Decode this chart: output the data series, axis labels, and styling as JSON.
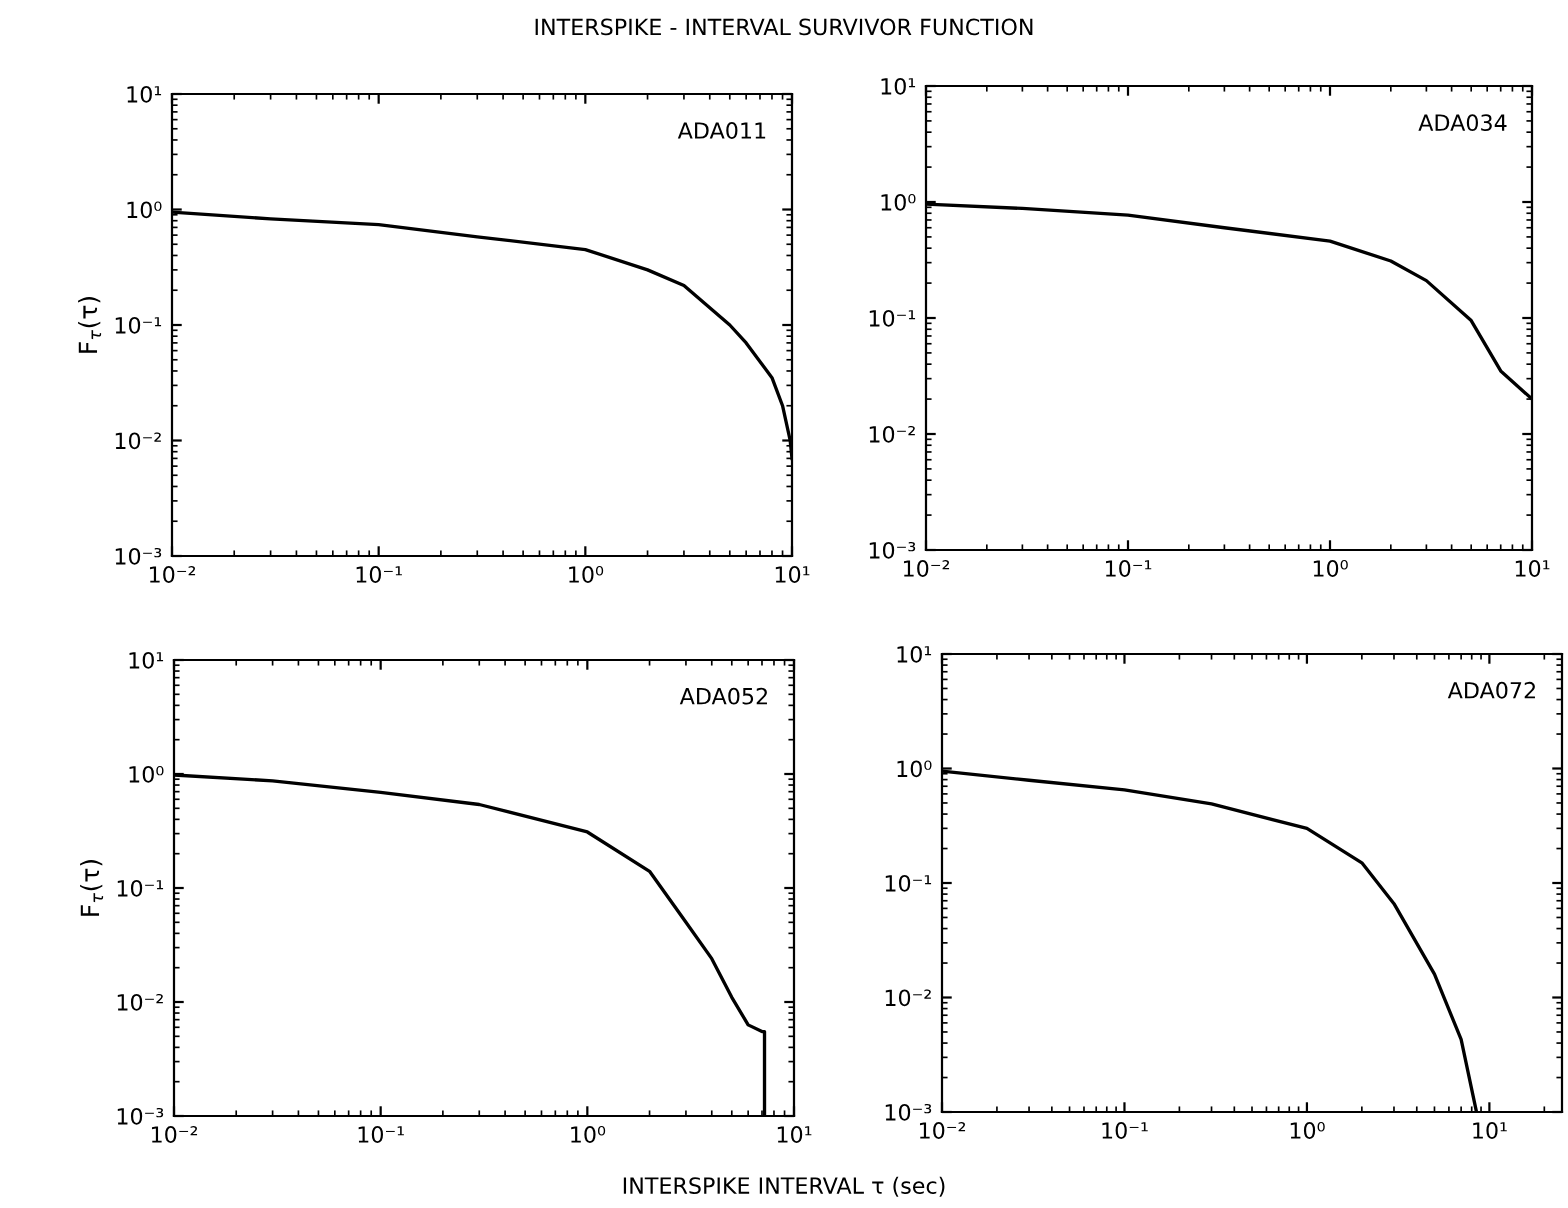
{
  "chart_data": [
    {
      "type": "line",
      "title": "INTERSPIKE - INTERVAL SURVIVOR FUNCTION",
      "ylabel": "F$_{τ}$(τ)",
      "log": "xy",
      "grid": false,
      "annotations": [
        "ADA011"
      ],
      "xlim": [
        0.01,
        10
      ],
      "ylim": [
        0.001,
        10
      ],
      "xticks": [
        {
          "value": 0.01,
          "label": "10⁻²"
        },
        {
          "value": 0.1,
          "label": "10⁻¹"
        },
        {
          "value": 1,
          "label": "10⁰"
        },
        {
          "value": 10,
          "label": "10¹"
        }
      ],
      "yticks": [
        {
          "value": 0.001,
          "label": "10⁻³"
        },
        {
          "value": 0.01,
          "label": "10⁻²"
        },
        {
          "value": 0.1,
          "label": "10⁻¹"
        },
        {
          "value": 1,
          "label": "10⁰"
        },
        {
          "value": 10,
          "label": "10¹"
        }
      ],
      "series": [
        {
          "color": "#000000",
          "x": [
            0.01,
            0.03,
            0.1,
            0.3,
            1,
            2,
            3,
            5,
            6,
            8,
            9,
            9.8,
            10
          ],
          "values": [
            0.95,
            0.83,
            0.74,
            0.58,
            0.45,
            0.3,
            0.22,
            0.1,
            0.07,
            0.035,
            0.02,
            0.01,
            0.007
          ]
        }
      ]
    },
    {
      "type": "line",
      "log": "xy",
      "grid": false,
      "annotations": [
        "ADA034"
      ],
      "xlim": [
        0.01,
        10
      ],
      "ylim": [
        0.001,
        10
      ],
      "xticks": [
        {
          "value": 0.01,
          "label": "10⁻²"
        },
        {
          "value": 0.1,
          "label": "10⁻¹"
        },
        {
          "value": 1,
          "label": "10⁰"
        },
        {
          "value": 10,
          "label": "10¹"
        }
      ],
      "yticks": [
        {
          "value": 0.001,
          "label": "10⁻³"
        },
        {
          "value": 0.01,
          "label": "10⁻²"
        },
        {
          "value": 0.1,
          "label": "10⁻¹"
        },
        {
          "value": 1,
          "label": "10⁰"
        },
        {
          "value": 10,
          "label": "10¹"
        }
      ],
      "series": [
        {
          "color": "#000000",
          "x": [
            0.01,
            0.03,
            0.1,
            0.3,
            1,
            2,
            3,
            5,
            7,
            10
          ],
          "values": [
            0.96,
            0.88,
            0.77,
            0.6,
            0.46,
            0.31,
            0.21,
            0.095,
            0.035,
            0.02
          ]
        }
      ]
    },
    {
      "type": "line",
      "ylabel": "F$_{τ}$(τ)",
      "xlabel": "INTERSPIKE INTERVAL τ (sec)",
      "log": "xy",
      "grid": false,
      "annotations": [
        "ADA052"
      ],
      "xlim": [
        0.01,
        10
      ],
      "ylim": [
        0.001,
        10
      ],
      "xticks": [
        {
          "value": 0.01,
          "label": "10⁻²"
        },
        {
          "value": 0.1,
          "label": "10⁻¹"
        },
        {
          "value": 1,
          "label": "10⁰"
        },
        {
          "value": 10,
          "label": "10¹"
        }
      ],
      "yticks": [
        {
          "value": 0.001,
          "label": "10⁻³"
        },
        {
          "value": 0.01,
          "label": "10⁻²"
        },
        {
          "value": 0.1,
          "label": "10⁻¹"
        },
        {
          "value": 1,
          "label": "10⁰"
        },
        {
          "value": 10,
          "label": "10¹"
        }
      ],
      "series": [
        {
          "color": "#000000",
          "x": [
            0.01,
            0.03,
            0.1,
            0.3,
            1,
            2,
            3,
            4,
            5,
            6,
            7,
            7.2,
            7.2
          ],
          "values": [
            0.98,
            0.87,
            0.69,
            0.54,
            0.31,
            0.14,
            0.05,
            0.024,
            0.011,
            0.0063,
            0.0055,
            0.0055,
            0.001
          ]
        }
      ]
    },
    {
      "type": "line",
      "log": "xy",
      "grid": false,
      "annotations": [
        "ADA072"
      ],
      "xlim": [
        0.01,
        25
      ],
      "ylim": [
        0.001,
        10
      ],
      "xticks": [
        {
          "value": 0.01,
          "label": "10⁻²"
        },
        {
          "value": 0.1,
          "label": "10⁻¹"
        },
        {
          "value": 1,
          "label": "10⁰"
        },
        {
          "value": 10,
          "label": "10¹"
        }
      ],
      "yticks": [
        {
          "value": 0.001,
          "label": "10⁻³"
        },
        {
          "value": 0.01,
          "label": "10⁻²"
        },
        {
          "value": 0.1,
          "label": "10⁻¹"
        },
        {
          "value": 1,
          "label": "10⁰"
        },
        {
          "value": 10,
          "label": "10¹"
        }
      ],
      "series": [
        {
          "color": "#000000",
          "x": [
            0.01,
            0.03,
            0.1,
            0.3,
            1,
            2,
            3,
            5,
            7,
            8.5
          ],
          "values": [
            0.95,
            0.79,
            0.65,
            0.49,
            0.3,
            0.15,
            0.066,
            0.016,
            0.0043,
            0.001
          ]
        }
      ]
    }
  ]
}
